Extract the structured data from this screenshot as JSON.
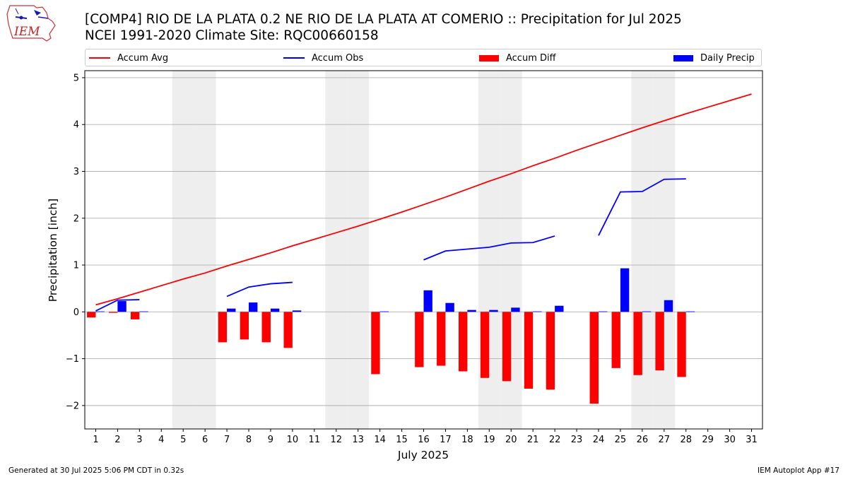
{
  "header": {
    "logo_text": "IEM",
    "title_line1": "[COMP4] RIO DE LA PLATA 0.2 NE RIO DE LA PLATA AT COMERIO :: Precipitation for Jul 2025",
    "title_line2": "NCEI 1991-2020 Climate Site: RQC00660158"
  },
  "colors": {
    "accum_avg": "#ff0000",
    "accum_obs": "#0000ff",
    "accum_diff": "#ff0000",
    "daily_precip": "#0000ff",
    "weekend_band": "#eeeeee",
    "grid": "#b0b0b0"
  },
  "chart_data": {
    "type": "bar",
    "xlabel": "July 2025",
    "ylabel": "Precipitation [inch]",
    "xlim": [
      0.5,
      31.5
    ],
    "ylim": [
      -2.5,
      5.15
    ],
    "yticks": [
      -2,
      -1,
      0,
      1,
      2,
      3,
      4,
      5
    ],
    "ytick_labels": [
      "−2",
      "−1",
      "0",
      "1",
      "2",
      "3",
      "4",
      "5"
    ],
    "grid": "horizontal",
    "legend_position": "top",
    "categories": [
      "1",
      "2",
      "3",
      "4",
      "5",
      "6",
      "7",
      "8",
      "9",
      "10",
      "11",
      "12",
      "13",
      "14",
      "15",
      "16",
      "17",
      "18",
      "19",
      "20",
      "21",
      "22",
      "23",
      "24",
      "25",
      "26",
      "27",
      "28",
      "29",
      "30",
      "31"
    ],
    "weekend_days": [
      5,
      6,
      12,
      13,
      19,
      20,
      26,
      27
    ],
    "series": [
      {
        "name": "Accum Avg",
        "kind": "line",
        "values": [
          0.15,
          0.28,
          0.42,
          0.56,
          0.7,
          0.83,
          0.98,
          1.12,
          1.26,
          1.41,
          1.55,
          1.69,
          1.83,
          1.98,
          2.13,
          2.29,
          2.45,
          2.62,
          2.79,
          2.95,
          3.12,
          3.28,
          3.45,
          3.61,
          3.77,
          3.93,
          4.08,
          4.23,
          4.37,
          4.51,
          4.65
        ]
      },
      {
        "name": "Accum Obs",
        "kind": "line",
        "values": [
          0.02,
          0.25,
          0.26,
          null,
          null,
          null,
          0.33,
          0.53,
          0.6,
          0.63,
          null,
          null,
          null,
          null,
          null,
          1.11,
          1.3,
          1.34,
          1.38,
          1.47,
          1.48,
          1.62,
          null,
          1.63,
          2.56,
          2.57,
          2.83,
          2.84,
          null,
          null,
          null
        ]
      },
      {
        "name": "Accum Diff",
        "kind": "bar",
        "values": [
          -0.12,
          -0.02,
          -0.16,
          null,
          null,
          null,
          -0.65,
          -0.59,
          -0.65,
          -0.77,
          null,
          null,
          null,
          -1.33,
          null,
          -1.18,
          -1.15,
          -1.27,
          -1.41,
          -1.48,
          -1.64,
          -1.66,
          null,
          -1.96,
          -1.2,
          -1.35,
          -1.25,
          -1.39,
          null,
          null,
          null
        ]
      },
      {
        "name": "Daily Precip",
        "kind": "bar",
        "values": [
          0.01,
          0.23,
          0.01,
          null,
          null,
          null,
          0.07,
          0.2,
          0.07,
          0.03,
          null,
          null,
          null,
          0.01,
          null,
          0.46,
          0.19,
          0.04,
          0.04,
          0.09,
          0.01,
          0.13,
          null,
          0.01,
          0.93,
          0.01,
          0.25,
          0.01,
          null,
          null,
          null
        ]
      }
    ]
  },
  "footer": {
    "generated": "Generated at 30 Jul 2025 5:06 PM CDT in 0.32s",
    "app": "IEM Autoplot App #17"
  }
}
